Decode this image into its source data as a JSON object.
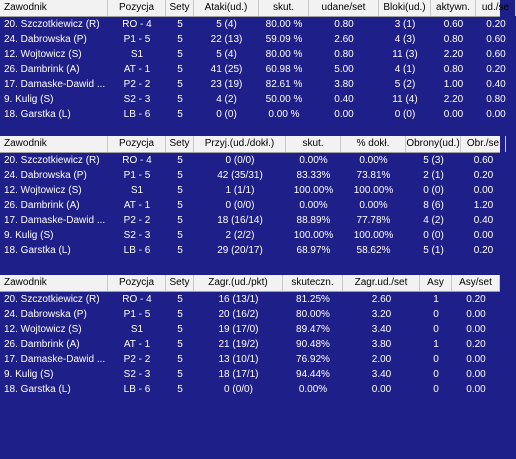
{
  "tables": [
    {
      "headers": [
        "Zawodnik",
        "Pozycja",
        "Sety",
        "Ataki(ud.)",
        "skut.",
        "udane/set",
        "Bloki(ud.)",
        "aktywn.",
        "ud./se"
      ],
      "rows": [
        [
          "20. Szczotkiewicz (R)",
          "RO - 4",
          "5",
          "5 (4)",
          "80.00 %",
          "0.80",
          "3 (1)",
          "0.60",
          "0.20"
        ],
        [
          "24. Dabrowska (P)",
          "P1 - 5",
          "5",
          "22 (13)",
          "59.09 %",
          "2.60",
          "4 (3)",
          "0.80",
          "0.60"
        ],
        [
          "12. Wojtowicz (S)",
          "S1",
          "5",
          "5 (4)",
          "80.00 %",
          "0.80",
          "11 (3)",
          "2.20",
          "0.60"
        ],
        [
          "26. Dambrink (A)",
          "AT - 1",
          "5",
          "41 (25)",
          "60.98 %",
          "5.00",
          "4 (1)",
          "0.80",
          "0.20"
        ],
        [
          "17. Damaske-Dawid ...",
          "P2 - 2",
          "5",
          "23 (19)",
          "82.61 %",
          "3.80",
          "5 (2)",
          "1.00",
          "0.40"
        ],
        [
          "9. Kulig (S)",
          "S2 - 3",
          "5",
          "4 (2)",
          "50.00 %",
          "0.40",
          "11 (4)",
          "2.20",
          "0.80"
        ],
        [
          "18. Garstka (L)",
          "LB - 6",
          "5",
          "0 (0)",
          "0.00 %",
          "0.00",
          "0 (0)",
          "0.00",
          "0.00"
        ]
      ]
    },
    {
      "headers": [
        "Zawodnik",
        "Pozycja",
        "Sety",
        "Przyj.(ud./dokł.)",
        "skut.",
        "% dokł.",
        "Obrony(ud.)",
        "Obr./se"
      ],
      "rows": [
        [
          "20. Szczotkiewicz (R)",
          "RO - 4",
          "5",
          "0 (0/0)",
          "0.00%",
          "0.00%",
          "5 (3)",
          "0.60"
        ],
        [
          "24. Dabrowska (P)",
          "P1 - 5",
          "5",
          "42 (35/31)",
          "83.33%",
          "73.81%",
          "2 (1)",
          "0.20"
        ],
        [
          "12. Wojtowicz (S)",
          "S1",
          "5",
          "1 (1/1)",
          "100.00%",
          "100.00%",
          "0 (0)",
          "0.00"
        ],
        [
          "26. Dambrink (A)",
          "AT - 1",
          "5",
          "0 (0/0)",
          "0.00%",
          "0.00%",
          "8 (6)",
          "1.20"
        ],
        [
          "17. Damaske-Dawid ...",
          "P2 - 2",
          "5",
          "18 (16/14)",
          "88.89%",
          "77.78%",
          "4 (2)",
          "0.40"
        ],
        [
          "9. Kulig (S)",
          "S2 - 3",
          "5",
          "2 (2/2)",
          "100.00%",
          "100.00%",
          "0 (0)",
          "0.00"
        ],
        [
          "18. Garstka (L)",
          "LB - 6",
          "5",
          "29 (20/17)",
          "68.97%",
          "58.62%",
          "5 (1)",
          "0.20"
        ]
      ]
    },
    {
      "headers": [
        "Zawodnik",
        "Pozycja",
        "Sety",
        "Zagr.(ud./pkt)",
        "skuteczn.",
        "Zagr.ud./set",
        "Asy",
        "Asy/set"
      ],
      "rows": [
        [
          "20. Szczotkiewicz (R)",
          "RO - 4",
          "5",
          "16 (13/1)",
          "81.25%",
          "2.60",
          "1",
          "0.20"
        ],
        [
          "24. Dabrowska (P)",
          "P1 - 5",
          "5",
          "20 (16/2)",
          "80.00%",
          "3.20",
          "0",
          "0.00"
        ],
        [
          "12. Wojtowicz (S)",
          "S1",
          "5",
          "19 (17/0)",
          "89.47%",
          "3.40",
          "0",
          "0.00"
        ],
        [
          "26. Dambrink (A)",
          "AT - 1",
          "5",
          "21 (19/2)",
          "90.48%",
          "3.80",
          "1",
          "0.20"
        ],
        [
          "17. Damaske-Dawid ...",
          "P2 - 2",
          "5",
          "13 (10/1)",
          "76.92%",
          "2.00",
          "0",
          "0.00"
        ],
        [
          "9. Kulig (S)",
          "S2 - 3",
          "5",
          "18 (17/1)",
          "94.44%",
          "3.40",
          "0",
          "0.00"
        ],
        [
          "18. Garstka (L)",
          "LB - 6",
          "5",
          "0 (0/0)",
          "0.00%",
          "0.00",
          "0",
          "0.00"
        ]
      ]
    }
  ]
}
